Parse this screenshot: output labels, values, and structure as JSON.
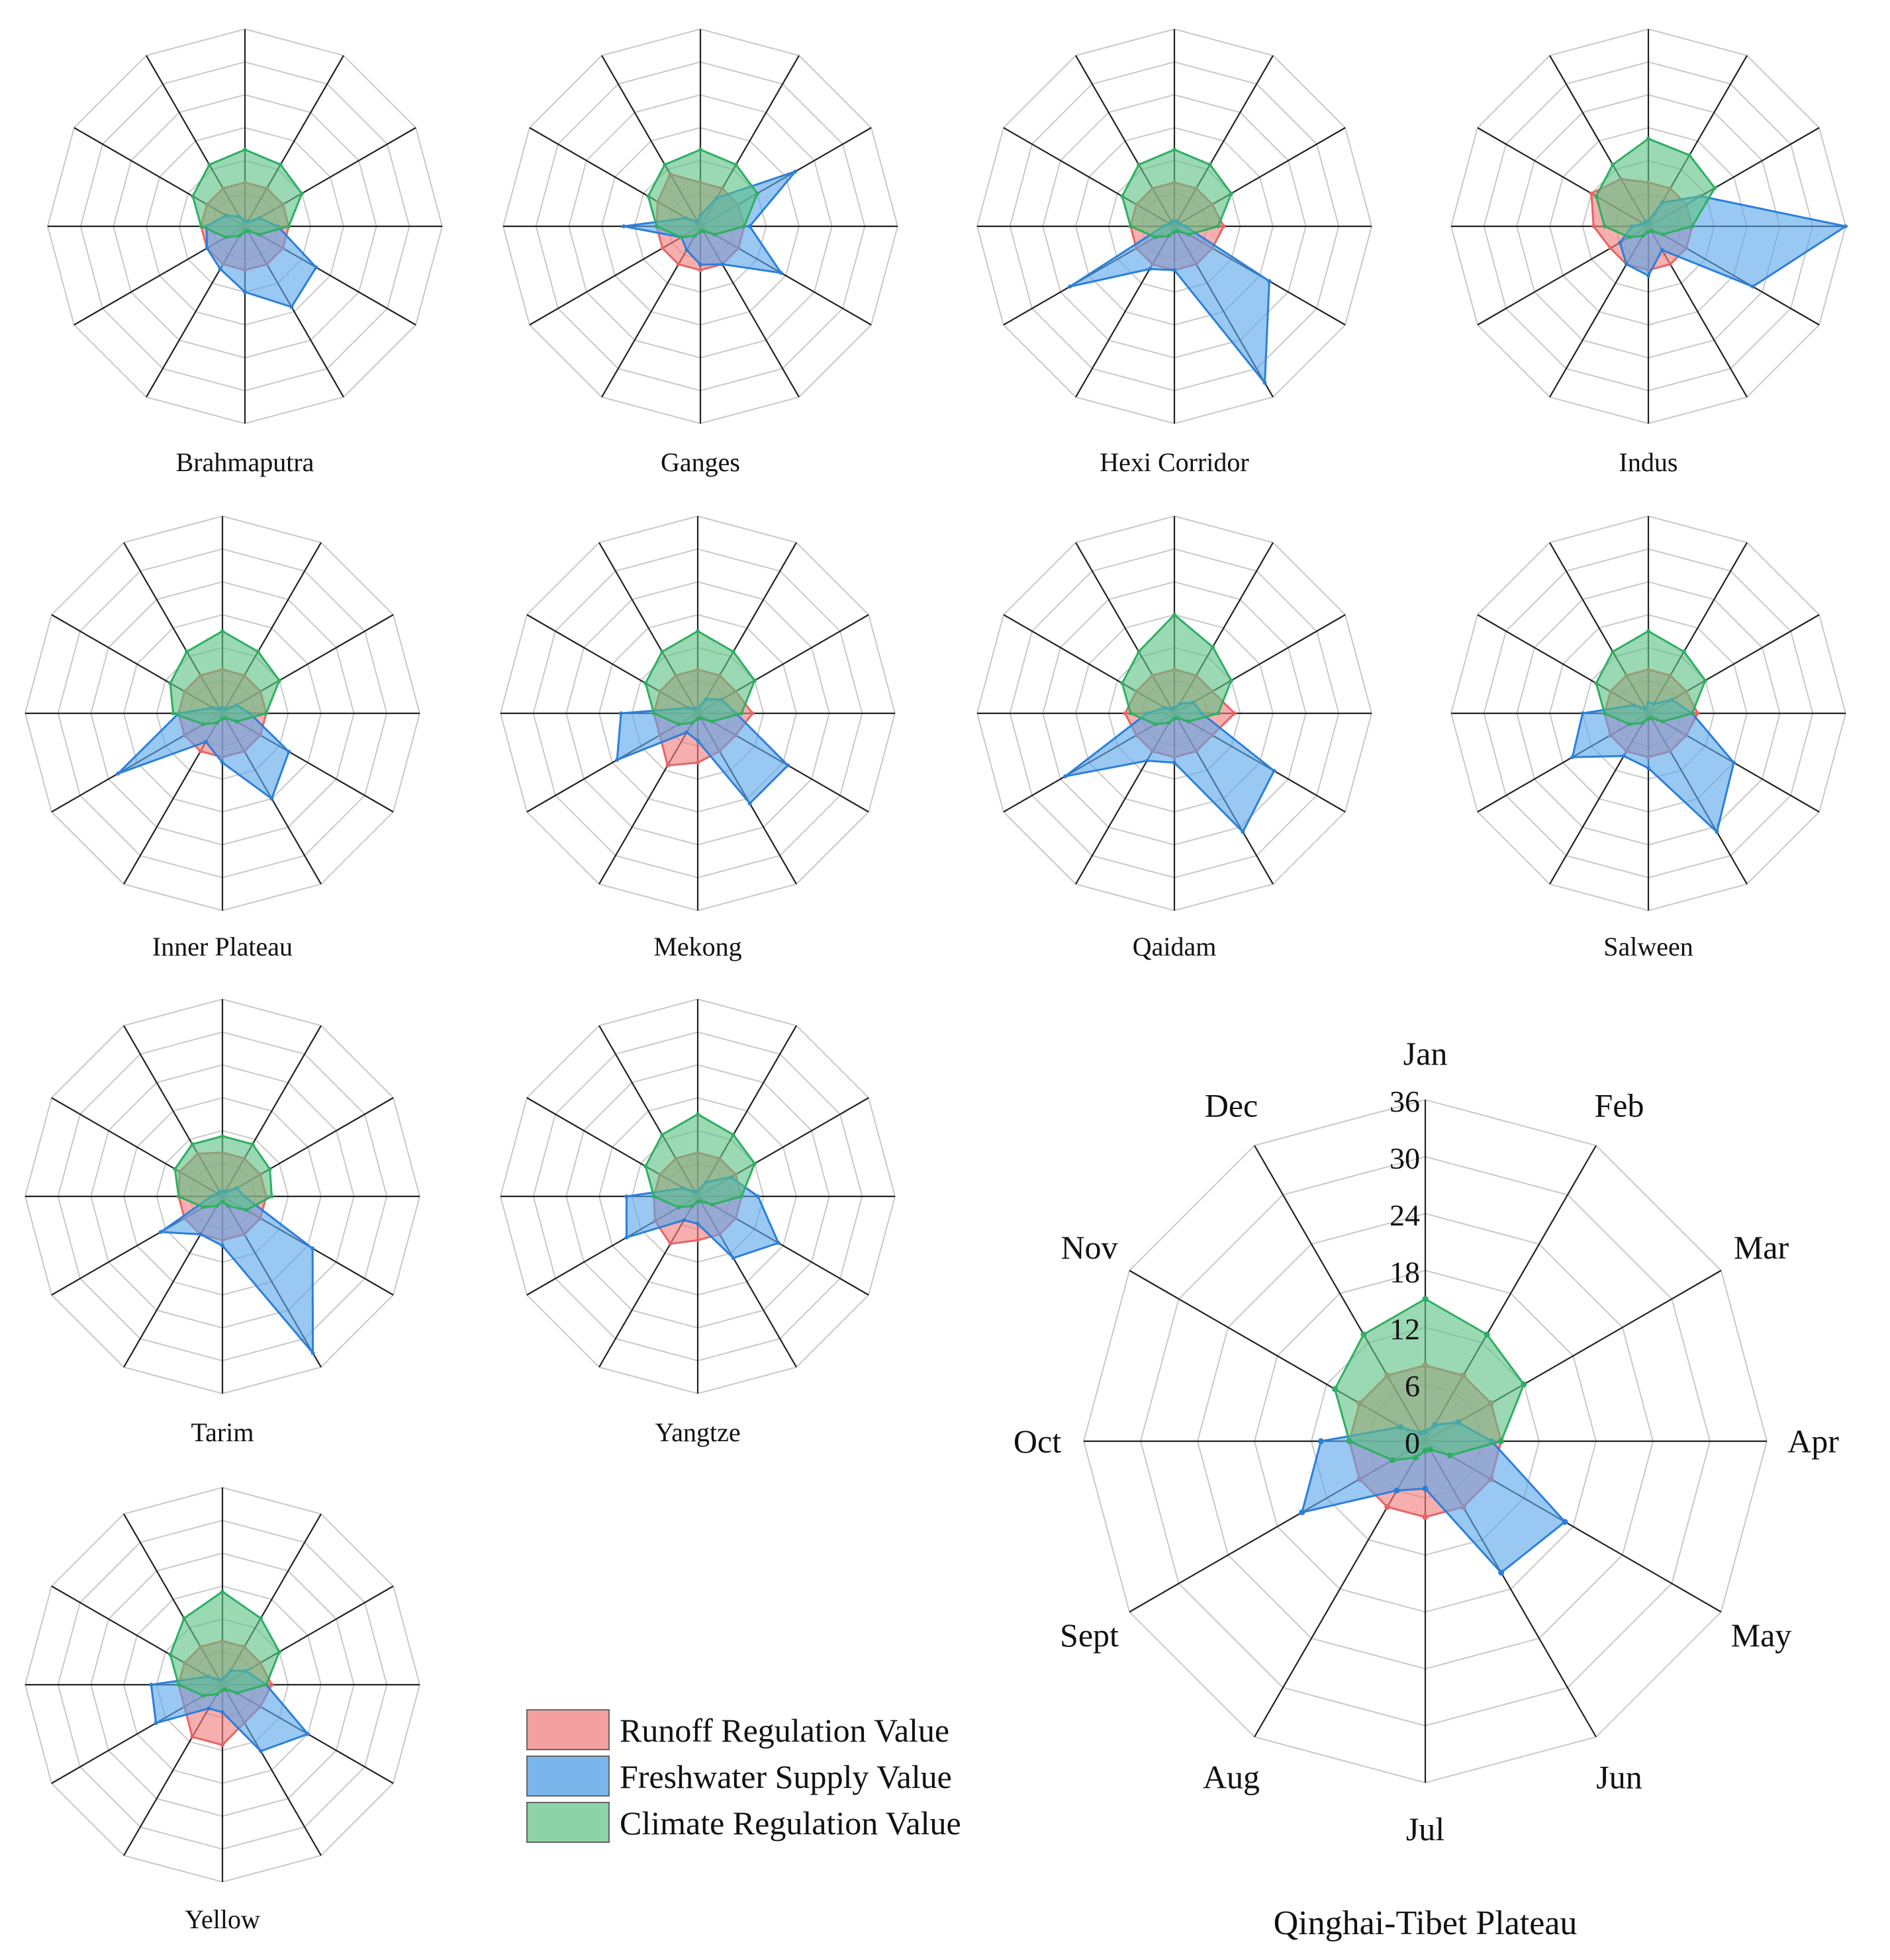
{
  "colors": {
    "runoff": "#e86464",
    "freshwater": "#2b7fd9",
    "climate": "#2fae62",
    "runoff_fill": "#f27c7c",
    "freshwater_fill": "#5aa6ea",
    "climate_fill": "#5cc185"
  },
  "legend": [
    {
      "key": "runoff",
      "label": "Runoff Regulation Value"
    },
    {
      "key": "freshwater",
      "label": "Freshwater Supply Value"
    },
    {
      "key": "climate",
      "label": "Climate Regulation Value"
    }
  ],
  "chart_data": [
    {
      "type": "radar",
      "title": "Brahmaputra",
      "rmax": 36,
      "categories": [
        "Jan",
        "Feb",
        "Mar",
        "Apr",
        "May",
        "Jun",
        "Jul",
        "Aug",
        "Sept",
        "Oct",
        "Nov",
        "Dec"
      ],
      "series": [
        {
          "name": "Runoff Regulation Value",
          "values": [
            8,
            8,
            8,
            8,
            8,
            8,
            8,
            8,
            8,
            8,
            8,
            8
          ]
        },
        {
          "name": "Freshwater Supply Value",
          "values": [
            1,
            1,
            3,
            6,
            15,
            17,
            12,
            9,
            8,
            7,
            4,
            2
          ]
        },
        {
          "name": "Climate Regulation Value",
          "values": [
            14,
            13,
            12,
            8,
            3,
            1,
            1,
            2,
            4,
            8,
            11,
            13
          ]
        }
      ]
    },
    {
      "type": "radar",
      "title": "Ganges",
      "rmax": 36,
      "categories": [
        "Jan",
        "Feb",
        "Mar",
        "Apr",
        "May",
        "Jun",
        "Jul",
        "Aug",
        "Sept",
        "Oct",
        "Nov",
        "Dec"
      ],
      "series": [
        {
          "name": "Runoff Regulation Value",
          "values": [
            8,
            8,
            8,
            8,
            8,
            8,
            8,
            8,
            8,
            8,
            9,
            11
          ]
        },
        {
          "name": "Freshwater Supply Value",
          "values": [
            2,
            6,
            20,
            9,
            17,
            8,
            7,
            5,
            4,
            14,
            3,
            1
          ]
        },
        {
          "name": "Climate Regulation Value",
          "values": [
            14,
            13,
            12,
            8,
            3,
            1,
            1,
            2,
            4,
            8,
            11,
            13
          ]
        }
      ]
    },
    {
      "type": "radar",
      "title": "Hexi Corridor",
      "rmax": 36,
      "categories": [
        "Jan",
        "Feb",
        "Mar",
        "Apr",
        "May",
        "Jun",
        "Jul",
        "Aug",
        "Sept",
        "Oct",
        "Nov",
        "Dec"
      ],
      "series": [
        {
          "name": "Runoff Regulation Value",
          "values": [
            8,
            8,
            8,
            9,
            8,
            8,
            8,
            8,
            8,
            8,
            8,
            8
          ]
        },
        {
          "name": "Freshwater Supply Value",
          "values": [
            1,
            1,
            1,
            2,
            20,
            33,
            8,
            9,
            22,
            2,
            1,
            1
          ]
        },
        {
          "name": "Climate Regulation Value",
          "values": [
            14,
            13,
            12,
            8,
            3,
            1,
            1,
            2,
            4,
            8,
            11,
            13
          ]
        }
      ]
    },
    {
      "type": "radar",
      "title": "Indus",
      "rmax": 36,
      "categories": [
        "Jan",
        "Feb",
        "Mar",
        "Apr",
        "May",
        "Jun",
        "Jul",
        "Aug",
        "Sept",
        "Oct",
        "Nov",
        "Dec"
      ],
      "series": [
        {
          "name": "Runoff Regulation Value",
          "values": [
            8,
            8,
            8,
            8,
            8,
            8,
            8,
            8,
            8,
            10,
            12,
            10
          ]
        },
        {
          "name": "Freshwater Supply Value",
          "values": [
            1,
            5,
            11,
            36,
            22,
            5,
            9,
            8,
            6,
            3,
            1,
            1
          ]
        },
        {
          "name": "Climate Regulation Value",
          "values": [
            16,
            15,
            14,
            8,
            3,
            1,
            1,
            2,
            4,
            8,
            11,
            13
          ]
        }
      ]
    },
    {
      "type": "radar",
      "title": "Inner Plateau",
      "rmax": 36,
      "categories": [
        "Jan",
        "Feb",
        "Mar",
        "Apr",
        "May",
        "Jun",
        "Jul",
        "Aug",
        "Sept",
        "Oct",
        "Nov",
        "Dec"
      ],
      "series": [
        {
          "name": "Runoff Regulation Value",
          "values": [
            8,
            8,
            8,
            8,
            8,
            8,
            8,
            8,
            8,
            8,
            8,
            8
          ]
        },
        {
          "name": "Freshwater Supply Value",
          "values": [
            1,
            1,
            3,
            5,
            14,
            18,
            9,
            6,
            22,
            8,
            2,
            1
          ]
        },
        {
          "name": "Climate Regulation Value",
          "values": [
            15,
            13,
            12,
            8,
            3,
            1,
            1,
            2,
            4,
            9,
            11,
            13
          ]
        }
      ]
    },
    {
      "type": "radar",
      "title": "Mekong",
      "rmax": 36,
      "categories": [
        "Jan",
        "Feb",
        "Mar",
        "Apr",
        "May",
        "Jun",
        "Jul",
        "Aug",
        "Sept",
        "Oct",
        "Nov",
        "Dec"
      ],
      "series": [
        {
          "name": "Runoff Regulation Value",
          "values": [
            8,
            8,
            8,
            10,
            8,
            8,
            9,
            11,
            8,
            8,
            8,
            8
          ]
        },
        {
          "name": "Freshwater Supply Value",
          "values": [
            1,
            3,
            5,
            7,
            19,
            19,
            5,
            4,
            17,
            14,
            2,
            1
          ]
        },
        {
          "name": "Climate Regulation Value",
          "values": [
            15,
            13,
            12,
            8,
            3,
            1,
            1,
            2,
            4,
            8,
            11,
            13
          ]
        }
      ]
    },
    {
      "type": "radar",
      "title": "Qaidam",
      "rmax": 36,
      "categories": [
        "Jan",
        "Feb",
        "Mar",
        "Apr",
        "May",
        "Jun",
        "Jul",
        "Aug",
        "Sept",
        "Oct",
        "Nov",
        "Dec"
      ],
      "series": [
        {
          "name": "Runoff Regulation Value",
          "values": [
            8,
            8,
            8,
            11,
            8,
            8,
            8,
            8,
            8,
            9,
            8,
            8
          ]
        },
        {
          "name": "Freshwater Supply Value",
          "values": [
            1,
            2,
            4,
            5,
            21,
            25,
            9,
            10,
            23,
            5,
            2,
            1
          ]
        },
        {
          "name": "Climate Regulation Value",
          "values": [
            18,
            14,
            12,
            8,
            3,
            1,
            1,
            2,
            4,
            8,
            11,
            13
          ]
        }
      ]
    },
    {
      "type": "radar",
      "title": "Salween",
      "rmax": 36,
      "categories": [
        "Jan",
        "Feb",
        "Mar",
        "Apr",
        "May",
        "Jun",
        "Jul",
        "Aug",
        "Sept",
        "Oct",
        "Nov",
        "Dec"
      ],
      "series": [
        {
          "name": "Runoff Regulation Value",
          "values": [
            8,
            8,
            8,
            9,
            8,
            8,
            8,
            8,
            8,
            8,
            8,
            8
          ]
        },
        {
          "name": "Freshwater Supply Value",
          "values": [
            2,
            2,
            5,
            8,
            18,
            25,
            10,
            9,
            16,
            12,
            3,
            1
          ]
        },
        {
          "name": "Climate Regulation Value",
          "values": [
            15,
            13,
            12,
            8,
            3,
            1,
            1,
            2,
            4,
            8,
            11,
            13
          ]
        }
      ]
    },
    {
      "type": "radar",
      "title": "Tarim",
      "rmax": 36,
      "categories": [
        "Jan",
        "Feb",
        "Mar",
        "Apr",
        "May",
        "Jun",
        "Jul",
        "Aug",
        "Sept",
        "Oct",
        "Nov",
        "Dec"
      ],
      "series": [
        {
          "name": "Runoff Regulation Value",
          "values": [
            8,
            8,
            8,
            8,
            8,
            8,
            8,
            8,
            8,
            8,
            9,
            9
          ]
        },
        {
          "name": "Freshwater Supply Value",
          "values": [
            1,
            1,
            3,
            4,
            19,
            33,
            9,
            8,
            13,
            2,
            1,
            1
          ]
        },
        {
          "name": "Climate Regulation Value",
          "values": [
            11,
            11,
            10,
            9,
            5,
            2,
            1,
            2,
            4,
            8,
            10,
            11
          ]
        }
      ]
    },
    {
      "type": "radar",
      "title": "Yangtze",
      "rmax": 36,
      "categories": [
        "Jan",
        "Feb",
        "Mar",
        "Apr",
        "May",
        "Jun",
        "Jul",
        "Aug",
        "Sept",
        "Oct",
        "Nov",
        "Dec"
      ],
      "series": [
        {
          "name": "Runoff Regulation Value",
          "values": [
            8,
            8,
            8,
            8,
            8,
            8,
            8,
            10,
            9,
            8,
            8,
            8
          ]
        },
        {
          "name": "Freshwater Supply Value",
          "values": [
            1,
            3,
            7,
            11,
            17,
            13,
            5,
            5,
            15,
            13,
            3,
            1
          ]
        },
        {
          "name": "Climate Regulation Value",
          "values": [
            15,
            13,
            12,
            8,
            3,
            1,
            1,
            2,
            4,
            8,
            11,
            13
          ]
        }
      ]
    },
    {
      "type": "radar",
      "title": "Yellow",
      "rmax": 36,
      "categories": [
        "Jan",
        "Feb",
        "Mar",
        "Apr",
        "May",
        "Jun",
        "Jul",
        "Aug",
        "Sept",
        "Oct",
        "Nov",
        "Dec"
      ],
      "series": [
        {
          "name": "Runoff Regulation Value",
          "values": [
            8,
            8,
            8,
            9,
            8,
            8,
            11,
            11,
            8,
            8,
            8,
            8
          ]
        },
        {
          "name": "Freshwater Supply Value",
          "values": [
            1,
            3,
            5,
            8,
            18,
            14,
            5,
            5,
            14,
            13,
            3,
            1
          ]
        },
        {
          "name": "Climate Regulation Value",
          "values": [
            17,
            14,
            12,
            8,
            3,
            1,
            1,
            2,
            4,
            8,
            11,
            14
          ]
        }
      ]
    },
    {
      "type": "radar",
      "title": "Qinghai-Tibet Plateau",
      "rmax": 36,
      "ticks": [
        "0",
        "6",
        "12",
        "18",
        "24",
        "30",
        "36"
      ],
      "categories": [
        "Jan",
        "Feb",
        "Mar",
        "Apr",
        "May",
        "Jun",
        "Jul",
        "Aug",
        "Sept",
        "Oct",
        "Nov",
        "Dec"
      ],
      "series": [
        {
          "name": "Runoff Regulation Value",
          "values": [
            8,
            8,
            8,
            8,
            8,
            8,
            8,
            8,
            8,
            8,
            8,
            8
          ]
        },
        {
          "name": "Freshwater Supply Value",
          "values": [
            1,
            2,
            4,
            7,
            17,
            16,
            5,
            6,
            15,
            11,
            3,
            1
          ]
        },
        {
          "name": "Climate Regulation Value",
          "values": [
            15,
            13,
            12,
            8,
            3,
            1,
            1,
            2,
            4,
            8,
            11,
            13
          ]
        }
      ]
    }
  ]
}
